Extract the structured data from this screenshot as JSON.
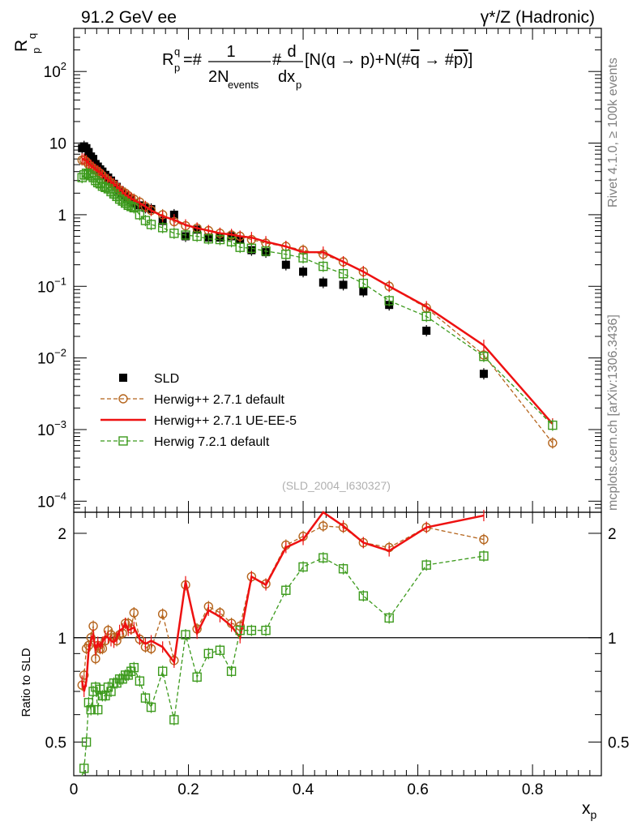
{
  "chart_data": {
    "type": "scatter",
    "header_left": "91.2 GeV ee",
    "header_right": "γ*/Z (Hadronic)",
    "formula": {
      "lhs": "R",
      "lhs_sub": "p",
      "lhs_sup": "q",
      "eq": "=#",
      "frac1_num": "1",
      "frac1_den": "2N",
      "frac1_den_sub": "events",
      "hash": "#",
      "frac2_num": "d",
      "frac2_den": "dx",
      "frac2_den_sub": "p",
      "rest_a": "[N(q →  p)+N(#",
      "rest_qbar": "q",
      "rest_b": " →  #",
      "rest_pbar": "p)",
      "rest_c": "]"
    },
    "ylabel_main": "R",
    "ylabel_main_sub": "p",
    "ylabel_main_sup": "q",
    "ylabel_ratio": "Ratio to SLD",
    "xlabel": "x",
    "xlabel_sub": "p",
    "analysis_tag": "(SLD_2004_I630327)",
    "side_label_top": "Rivet 4.1.0, ≥ 100k events",
    "side_label_bottom": "mcplots.cern.ch [arXiv:1306.3436]",
    "xlim": [
      0,
      0.92
    ],
    "ylim_main": [
      7e-05,
      400
    ],
    "ylim_ratio": [
      0.4,
      2.3
    ],
    "x_ticks": [
      "0",
      "0.2",
      "0.4",
      "0.6",
      "0.8"
    ],
    "x_tick_values": [
      0,
      0.2,
      0.4,
      0.6,
      0.8
    ],
    "y_ticks_main": [
      {
        "value": 100,
        "base": "10",
        "exp": "2"
      },
      {
        "value": 10,
        "base": "10",
        "exp": ""
      },
      {
        "value": 1,
        "base": "1",
        "exp": ""
      },
      {
        "value": 0.1,
        "base": "10",
        "exp": "−1"
      },
      {
        "value": 0.01,
        "base": "10",
        "exp": "−2"
      },
      {
        "value": 0.001,
        "base": "10",
        "exp": "−3"
      },
      {
        "value": 0.0001,
        "base": "10",
        "exp": "−4"
      }
    ],
    "y_ticks_ratio": [
      {
        "value": 0.5,
        "label": "0.5"
      },
      {
        "value": 1,
        "label": "1"
      },
      {
        "value": 2,
        "label": "2"
      }
    ],
    "legend": [
      {
        "label": "SLD",
        "color": "#000000",
        "marker": "square-filled",
        "line": "none"
      },
      {
        "label": "Herwig++ 2.7.1 default",
        "color": "#b5651d",
        "marker": "circle-open",
        "line": "dashed"
      },
      {
        "label": "Herwig++ 2.7.1 UE-EE-5",
        "color": "#ee1111",
        "marker": "none",
        "line": "solid"
      },
      {
        "label": "Herwig 7.2.1 default",
        "color": "#3c9a1c",
        "marker": "square-open",
        "line": "dashed"
      }
    ],
    "x": [
      0.0145,
      0.018,
      0.022,
      0.026,
      0.03,
      0.034,
      0.038,
      0.042,
      0.046,
      0.05,
      0.055,
      0.06,
      0.065,
      0.07,
      0.075,
      0.08,
      0.085,
      0.09,
      0.095,
      0.1,
      0.105,
      0.115,
      0.125,
      0.135,
      0.155,
      0.175,
      0.195,
      0.215,
      0.235,
      0.255,
      0.275,
      0.29,
      0.31,
      0.335,
      0.37,
      0.4,
      0.435,
      0.47,
      0.505,
      0.55,
      0.615,
      0.715,
      0.835
    ],
    "series": [
      {
        "name": "SLD",
        "values": [
          8.5,
          9,
          8.5,
          7.5,
          6.5,
          6,
          5.1,
          4.7,
          4.3,
          4,
          3.6,
          3.3,
          3.0,
          2.7,
          2.45,
          2.2,
          2.0,
          1.85,
          1.7,
          1.6,
          1.45,
          1.35,
          1.25,
          1.2,
          0.82,
          1.0,
          0.5,
          0.62,
          0.48,
          0.48,
          0.5,
          0.45,
          0.32,
          0.3,
          0.2,
          0.16,
          0.113,
          0.105,
          0.085,
          0.055,
          0.024,
          0.006,
          null
        ]
      },
      {
        "name": "Herwig++ 2.7.1 default",
        "values": [
          5.8,
          5.8,
          5.5,
          5.0,
          4.7,
          4.4,
          4.2,
          4.0,
          3.8,
          3.5,
          3.2,
          3.0,
          2.8,
          2.6,
          2.4,
          2.2,
          2.1,
          2.0,
          1.85,
          1.7,
          1.65,
          1.5,
          1.3,
          1.15,
          1.0,
          0.8,
          0.7,
          0.65,
          0.6,
          0.55,
          0.52,
          0.5,
          0.45,
          0.4,
          0.36,
          0.32,
          0.28,
          0.22,
          0.16,
          0.1,
          0.05,
          0.011,
          0.00065
        ]
      },
      {
        "name": "Herwig++ 2.7.1 UE-EE-5",
        "values": [
          6.0,
          6.0,
          5.7,
          5.2,
          4.9,
          4.6,
          4.3,
          4.1,
          3.9,
          3.6,
          3.3,
          3.1,
          2.9,
          2.7,
          2.5,
          2.3,
          2.1,
          1.9,
          1.8,
          1.7,
          1.6,
          1.45,
          1.3,
          1.15,
          0.95,
          0.85,
          0.72,
          0.65,
          0.6,
          0.55,
          0.53,
          0.5,
          0.48,
          0.42,
          0.36,
          0.3,
          0.3,
          0.22,
          0.16,
          0.1,
          0.052,
          0.015,
          0.0012
        ]
      },
      {
        "name": "Herwig 7.2.1 default",
        "values": [
          3.3,
          3.6,
          3.8,
          3.7,
          3.5,
          3.3,
          3.0,
          2.8,
          2.7,
          2.5,
          2.4,
          2.3,
          2.1,
          1.95,
          1.8,
          1.65,
          1.55,
          1.45,
          1.35,
          1.3,
          1.25,
          1.0,
          0.83,
          0.73,
          0.66,
          0.55,
          0.52,
          0.5,
          0.46,
          0.45,
          0.42,
          0.35,
          0.34,
          0.31,
          0.28,
          0.25,
          0.19,
          0.15,
          0.11,
          0.063,
          0.038,
          0.0105,
          0.00115
        ]
      }
    ],
    "ratio_series": [
      {
        "name": "Herwig++ 2.7.1 default",
        "values": [
          0.73,
          0.78,
          0.93,
          0.95,
          1.0,
          1.08,
          0.87,
          0.95,
          0.93,
          0.93,
          0.98,
          1.05,
          1.02,
          1.0,
          0.98,
          1.02,
          1.03,
          1.1,
          1.1,
          1.06,
          1.18,
          0.99,
          0.94,
          0.93,
          1.17,
          0.86,
          1.42,
          1.06,
          1.23,
          1.18,
          1.1,
          1.08,
          1.5,
          1.43,
          1.85,
          1.96,
          2.1,
          2.08,
          1.88,
          1.82,
          2.08,
          1.92,
          null
        ]
      },
      {
        "name": "Herwig++ 2.7.1 UE-EE-5",
        "values": [
          0.75,
          0.7,
          0.75,
          0.92,
          0.98,
          1.02,
          0.92,
          0.97,
          0.94,
          0.97,
          1.01,
          1.0,
          0.98,
          0.97,
          1.0,
          1.05,
          1.06,
          1.1,
          1.05,
          1.06,
          1.07,
          0.99,
          0.96,
          0.98,
          0.94,
          0.85,
          1.45,
          1.03,
          1.2,
          1.15,
          1.08,
          1.0,
          1.5,
          1.42,
          1.82,
          1.92,
          2.35,
          2.1,
          1.88,
          1.78,
          2.08,
          2.25,
          null
        ]
      },
      {
        "name": "Herwig 7.2.1 default",
        "values": [
          0.35,
          0.42,
          0.5,
          0.65,
          0.62,
          0.7,
          0.72,
          0.62,
          0.71,
          0.68,
          0.68,
          0.72,
          0.7,
          0.74,
          0.74,
          0.76,
          0.76,
          0.78,
          0.78,
          0.8,
          0.82,
          0.75,
          0.67,
          0.63,
          0.8,
          0.58,
          1.02,
          0.77,
          0.9,
          0.92,
          0.8,
          1.05,
          1.05,
          1.05,
          1.37,
          1.6,
          1.7,
          1.58,
          1.32,
          1.14,
          1.62,
          1.72,
          null
        ]
      }
    ]
  }
}
